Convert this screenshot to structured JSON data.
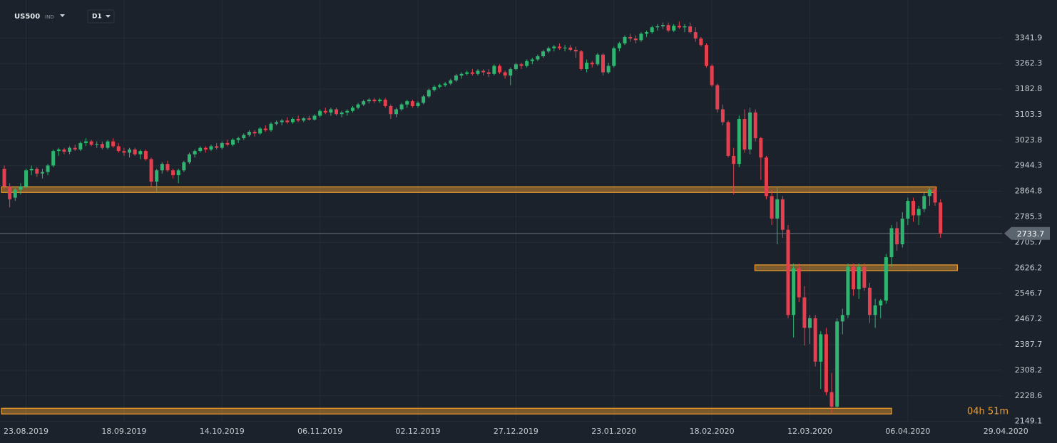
{
  "header": {
    "symbol": "US500",
    "market": "IND",
    "timeframe": "D1"
  },
  "chart_data": {
    "type": "candlestick",
    "up_color": "#2fb56f",
    "down_color": "#e5404f",
    "level_color": "#f0a030",
    "grid": true,
    "ylim": [
      2135,
      3460
    ],
    "yticks": [
      3341.9,
      3262.3,
      3182.8,
      3103.3,
      3023.8,
      2944.3,
      2864.8,
      2785.3,
      2705.7,
      2626.2,
      2546.7,
      2467.2,
      2387.7,
      2308.2,
      2228.6,
      2149.1
    ],
    "xlim": [
      -0.786,
      193.4
    ],
    "xticks": [
      {
        "value": 4,
        "label": "23.08.2019"
      },
      {
        "value": 22,
        "label": "18.09.2019"
      },
      {
        "value": 40,
        "label": "14.10.2019"
      },
      {
        "value": 58,
        "label": "06.11.2019"
      },
      {
        "value": 76,
        "label": "02.12.2019"
      },
      {
        "value": 94,
        "label": "27.12.2019"
      },
      {
        "value": 112,
        "label": "23.01.2020"
      },
      {
        "value": 130,
        "label": "18.02.2020"
      },
      {
        "value": 148,
        "label": "12.03.2020"
      },
      {
        "value": 166,
        "label": "06.04.2020"
      },
      {
        "value": 184,
        "label": "29.04.2020"
      }
    ],
    "last_price": 2733.7,
    "timer": "04h 51m",
    "levels": [
      {
        "value": 2870,
        "from": -0.5,
        "to": 171.2
      },
      {
        "value": 2627,
        "from": 137.9,
        "to": 175.1
      },
      {
        "value": 2181,
        "from": -0.5,
        "to": 163
      }
    ],
    "candles": [
      [
        2935,
        2945,
        2870,
        2880
      ],
      [
        2880,
        2890,
        2815,
        2840
      ],
      [
        2845,
        2880,
        2835,
        2870
      ],
      [
        2870,
        2890,
        2855,
        2880
      ],
      [
        2880,
        2935,
        2875,
        2930
      ],
      [
        2930,
        2945,
        2915,
        2935
      ],
      [
        2935,
        2940,
        2910,
        2920
      ],
      [
        2920,
        2935,
        2905,
        2925
      ],
      [
        2925,
        2950,
        2915,
        2945
      ],
      [
        2945,
        2995,
        2940,
        2990
      ],
      [
        2990,
        3000,
        2975,
        2995
      ],
      [
        2995,
        3000,
        2980,
        2988
      ],
      [
        2988,
        3005,
        2980,
        3000
      ],
      [
        3000,
        3010,
        2990,
        2995
      ],
      [
        2995,
        3020,
        2990,
        3015
      ],
      [
        3015,
        3030,
        3005,
        3020
      ],
      [
        3020,
        3025,
        3005,
        3010
      ],
      [
        3010,
        3020,
        3000,
        3012
      ],
      [
        3012,
        3020,
        2995,
        3000
      ],
      [
        3000,
        3025,
        2995,
        3020
      ],
      [
        3020,
        3030,
        3000,
        3005
      ],
      [
        3005,
        3015,
        2985,
        2990
      ],
      [
        2990,
        3000,
        2975,
        2985
      ],
      [
        2985,
        3000,
        2970,
        2995
      ],
      [
        2995,
        3000,
        2975,
        2980
      ],
      [
        2980,
        2995,
        2965,
        2990
      ],
      [
        2990,
        2995,
        2960,
        2965
      ],
      [
        2965,
        2970,
        2880,
        2895
      ],
      [
        2895,
        2935,
        2860,
        2930
      ],
      [
        2930,
        2955,
        2920,
        2950
      ],
      [
        2950,
        2960,
        2925,
        2930
      ],
      [
        2930,
        2935,
        2905,
        2915
      ],
      [
        2915,
        2935,
        2890,
        2930
      ],
      [
        2930,
        2960,
        2925,
        2955
      ],
      [
        2955,
        2985,
        2950,
        2980
      ],
      [
        2980,
        2995,
        2970,
        2990
      ],
      [
        2990,
        3005,
        2985,
        3000
      ],
      [
        3000,
        3005,
        2985,
        2995
      ],
      [
        2995,
        3010,
        2990,
        3005
      ],
      [
        3005,
        3015,
        2995,
        3000
      ],
      [
        3000,
        3020,
        2995,
        3015
      ],
      [
        3015,
        3025,
        3005,
        3010
      ],
      [
        3010,
        3030,
        3005,
        3025
      ],
      [
        3025,
        3035,
        3015,
        3030
      ],
      [
        3030,
        3045,
        3025,
        3040
      ],
      [
        3040,
        3055,
        3035,
        3050
      ],
      [
        3050,
        3055,
        3035,
        3045
      ],
      [
        3045,
        3065,
        3040,
        3060
      ],
      [
        3060,
        3070,
        3050,
        3055
      ],
      [
        3055,
        3080,
        3050,
        3075
      ],
      [
        3075,
        3085,
        3070,
        3080
      ],
      [
        3080,
        3090,
        3070,
        3085
      ],
      [
        3085,
        3095,
        3075,
        3080
      ],
      [
        3080,
        3095,
        3075,
        3090
      ],
      [
        3090,
        3100,
        3080,
        3085
      ],
      [
        3085,
        3095,
        3080,
        3092
      ],
      [
        3092,
        3100,
        3085,
        3088
      ],
      [
        3088,
        3105,
        3085,
        3100
      ],
      [
        3100,
        3120,
        3095,
        3115
      ],
      [
        3115,
        3125,
        3105,
        3110
      ],
      [
        3110,
        3125,
        3100,
        3120
      ],
      [
        3120,
        3125,
        3100,
        3105
      ],
      [
        3105,
        3115,
        3095,
        3110
      ],
      [
        3110,
        3120,
        3100,
        3115
      ],
      [
        3115,
        3130,
        3110,
        3125
      ],
      [
        3125,
        3140,
        3120,
        3135
      ],
      [
        3135,
        3150,
        3130,
        3145
      ],
      [
        3145,
        3155,
        3138,
        3150
      ],
      [
        3150,
        3155,
        3140,
        3145
      ],
      [
        3145,
        3155,
        3140,
        3150
      ],
      [
        3150,
        3155,
        3125,
        3130
      ],
      [
        3130,
        3135,
        3090,
        3105
      ],
      [
        3105,
        3125,
        3095,
        3120
      ],
      [
        3120,
        3140,
        3115,
        3135
      ],
      [
        3135,
        3150,
        3125,
        3145
      ],
      [
        3145,
        3150,
        3125,
        3130
      ],
      [
        3130,
        3145,
        3125,
        3140
      ],
      [
        3140,
        3165,
        3135,
        3160
      ],
      [
        3160,
        3185,
        3155,
        3180
      ],
      [
        3180,
        3195,
        3175,
        3190
      ],
      [
        3190,
        3200,
        3185,
        3195
      ],
      [
        3195,
        3205,
        3190,
        3200
      ],
      [
        3200,
        3215,
        3195,
        3210
      ],
      [
        3210,
        3230,
        3205,
        3225
      ],
      [
        3225,
        3235,
        3215,
        3230
      ],
      [
        3230,
        3240,
        3225,
        3235
      ],
      [
        3235,
        3245,
        3225,
        3230
      ],
      [
        3230,
        3245,
        3225,
        3240
      ],
      [
        3240,
        3245,
        3225,
        3235
      ],
      [
        3235,
        3245,
        3220,
        3230
      ],
      [
        3230,
        3260,
        3225,
        3255
      ],
      [
        3255,
        3260,
        3230,
        3235
      ],
      [
        3235,
        3240,
        3215,
        3225
      ],
      [
        3225,
        3250,
        3195,
        3245
      ],
      [
        3245,
        3265,
        3240,
        3260
      ],
      [
        3260,
        3265,
        3245,
        3255
      ],
      [
        3255,
        3275,
        3250,
        3270
      ],
      [
        3270,
        3280,
        3260,
        3275
      ],
      [
        3275,
        3290,
        3270,
        3285
      ],
      [
        3285,
        3305,
        3280,
        3300
      ],
      [
        3300,
        3315,
        3295,
        3310
      ],
      [
        3310,
        3320,
        3300,
        3315
      ],
      [
        3315,
        3325,
        3305,
        3310
      ],
      [
        3310,
        3320,
        3300,
        3312
      ],
      [
        3312,
        3320,
        3300,
        3305
      ],
      [
        3305,
        3315,
        3280,
        3300
      ],
      [
        3300,
        3305,
        3240,
        3245
      ],
      [
        3245,
        3275,
        3235,
        3265
      ],
      [
        3265,
        3270,
        3250,
        3260
      ],
      [
        3260,
        3295,
        3255,
        3290
      ],
      [
        3290,
        3295,
        3225,
        3235
      ],
      [
        3235,
        3265,
        3230,
        3255
      ],
      [
        3255,
        3315,
        3250,
        3310
      ],
      [
        3310,
        3330,
        3300,
        3325
      ],
      [
        3325,
        3350,
        3320,
        3345
      ],
      [
        3345,
        3355,
        3330,
        3340
      ],
      [
        3340,
        3350,
        3325,
        3335
      ],
      [
        3335,
        3360,
        3330,
        3355
      ],
      [
        3355,
        3365,
        3345,
        3360
      ],
      [
        3360,
        3380,
        3355,
        3375
      ],
      [
        3375,
        3385,
        3365,
        3378
      ],
      [
        3378,
        3390,
        3370,
        3382
      ],
      [
        3382,
        3390,
        3360,
        3365
      ],
      [
        3365,
        3385,
        3360,
        3380
      ],
      [
        3380,
        3393,
        3370,
        3375
      ],
      [
        3375,
        3385,
        3360,
        3378
      ],
      [
        3378,
        3390,
        3355,
        3360
      ],
      [
        3360,
        3375,
        3330,
        3340
      ],
      [
        3340,
        3345,
        3315,
        3320
      ],
      [
        3320,
        3325,
        3250,
        3255
      ],
      [
        3255,
        3260,
        3190,
        3195
      ],
      [
        3195,
        3200,
        3110,
        3120
      ],
      [
        3120,
        3135,
        3070,
        3080
      ],
      [
        3080,
        3085,
        2970,
        2975
      ],
      [
        2975,
        3000,
        2855,
        2950
      ],
      [
        2950,
        3100,
        2940,
        3090
      ],
      [
        3090,
        3120,
        2985,
        2995
      ],
      [
        2995,
        3125,
        2980,
        3110
      ],
      [
        3110,
        3120,
        3020,
        3030
      ],
      [
        3030,
        3035,
        2900,
        2970
      ],
      [
        2970,
        2975,
        2840,
        2850
      ],
      [
        2850,
        2870,
        2760,
        2780
      ],
      [
        2780,
        2880,
        2700,
        2840
      ],
      [
        2840,
        2850,
        2720,
        2745
      ],
      [
        2745,
        2760,
        2470,
        2480
      ],
      [
        2480,
        2640,
        2410,
        2625
      ],
      [
        2625,
        2640,
        2520,
        2535
      ],
      [
        2535,
        2570,
        2385,
        2440
      ],
      [
        2440,
        2480,
        2390,
        2470
      ],
      [
        2470,
        2480,
        2320,
        2335
      ],
      [
        2335,
        2430,
        2250,
        2420
      ],
      [
        2420,
        2440,
        2230,
        2240
      ],
      [
        2240,
        2300,
        2175,
        2195
      ],
      [
        2195,
        2470,
        2190,
        2460
      ],
      [
        2460,
        2500,
        2420,
        2480
      ],
      [
        2480,
        2640,
        2470,
        2630
      ],
      [
        2630,
        2640,
        2540,
        2560
      ],
      [
        2560,
        2640,
        2530,
        2630
      ],
      [
        2630,
        2640,
        2555,
        2565
      ],
      [
        2565,
        2580,
        2455,
        2480
      ],
      [
        2480,
        2530,
        2440,
        2510
      ],
      [
        2510,
        2530,
        2470,
        2525
      ],
      [
        2525,
        2670,
        2515,
        2660
      ],
      [
        2660,
        2760,
        2630,
        2750
      ],
      [
        2750,
        2770,
        2680,
        2700
      ],
      [
        2700,
        2800,
        2690,
        2780
      ],
      [
        2780,
        2845,
        2760,
        2835
      ],
      [
        2835,
        2845,
        2770,
        2790
      ],
      [
        2790,
        2820,
        2760,
        2810
      ],
      [
        2810,
        2860,
        2800,
        2850
      ],
      [
        2850,
        2880,
        2820,
        2870
      ],
      [
        2870,
        2880,
        2820,
        2830
      ],
      [
        2830,
        2840,
        2720,
        2733.7
      ]
    ]
  }
}
